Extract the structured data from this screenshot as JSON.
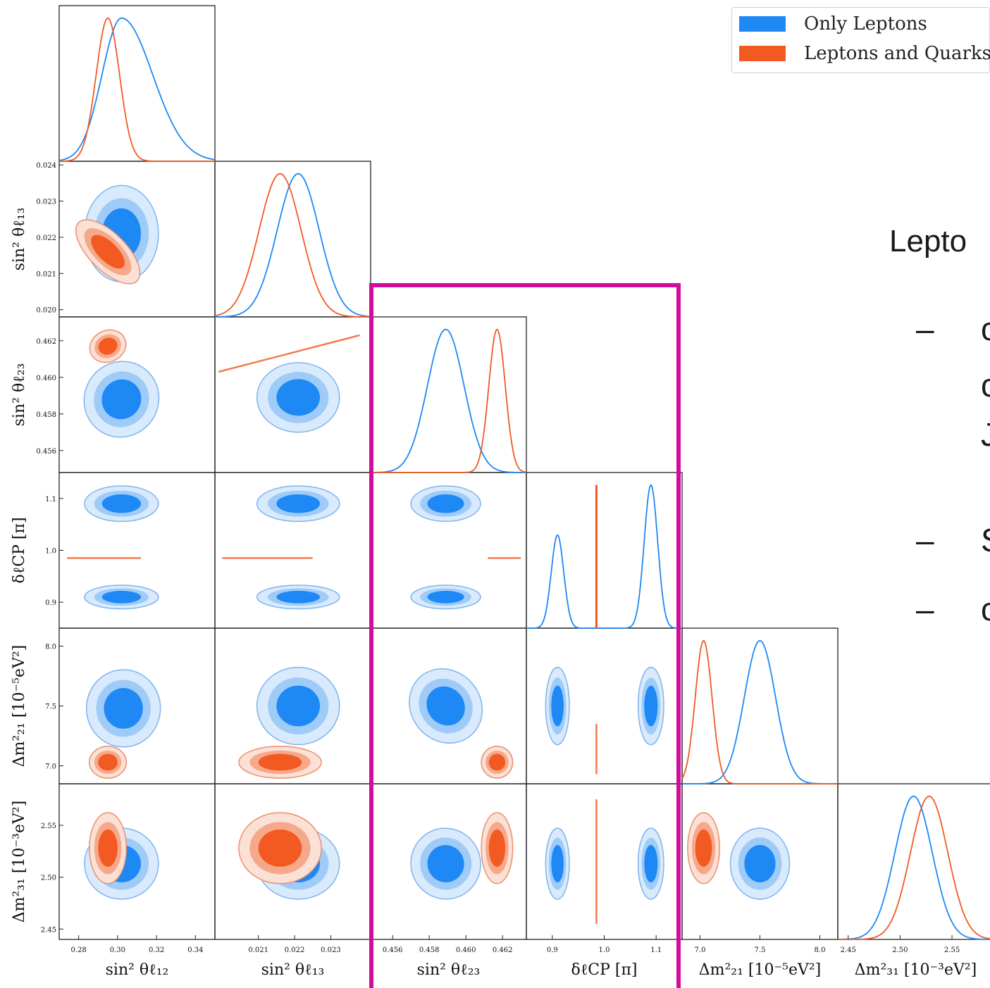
{
  "legend": {
    "items": [
      {
        "label": "Only Leptons",
        "color": "#1e88f5"
      },
      {
        "label": "Leptons and Quarks",
        "color": "#f25a22"
      }
    ]
  },
  "side_text": {
    "title": "Lepto",
    "bullets": [
      {
        "dash": "–",
        "lines": [
          "c",
          "c",
          "J"
        ]
      },
      {
        "dash": "–",
        "lines": [
          "S"
        ]
      },
      {
        "dash": "–",
        "lines": [
          "c"
        ]
      }
    ]
  },
  "highlight_color": "#d10d9c",
  "colors": {
    "blue": "#1e88f5",
    "blue_mid": "#9ecbf7",
    "blue_light": "#d8eafc",
    "orange": "#f25a22",
    "orange_mid": "#f5a98a",
    "orange_light": "#fbe0d5"
  },
  "chart_data": {
    "type": "corner",
    "parameters": [
      {
        "id": "s12",
        "label": "sin² θℓ₁₂",
        "ylabel": "",
        "range": [
          0.27,
          0.35
        ],
        "ticks": [
          "0.28",
          "0.30",
          "0.32",
          "0.34"
        ],
        "tick_values": [
          0.28,
          0.3,
          0.32,
          0.34
        ]
      },
      {
        "id": "s13",
        "label": "sin² θℓ₁₃",
        "ylabel": "sin² θℓ₁₃",
        "range": [
          0.0198,
          0.0241
        ],
        "ticks": [
          "0.021",
          "0.022",
          "0.023"
        ],
        "tick_values": [
          0.021,
          0.022,
          0.023
        ],
        "yticks": [
          "0.020",
          "0.021",
          "0.022",
          "0.023",
          "0.024"
        ],
        "ytick_values": [
          0.02,
          0.021,
          0.022,
          0.023,
          0.024
        ]
      },
      {
        "id": "s23",
        "label": "sin² θℓ₂₃",
        "ylabel": "sin² θℓ₂₃",
        "range": [
          0.4548,
          0.4633
        ],
        "ticks": [
          "0.456",
          "0.458",
          "0.460",
          "0.462"
        ],
        "tick_values": [
          0.456,
          0.458,
          0.46,
          0.462
        ]
      },
      {
        "id": "dcp",
        "label": "δℓCP [π]",
        "ylabel": "δℓCP [π]",
        "range": [
          0.85,
          1.15
        ],
        "ticks": [
          "0.9",
          "1.0",
          "1.1"
        ],
        "tick_values": [
          0.9,
          1.0,
          1.1
        ]
      },
      {
        "id": "m21",
        "label": "Δm²₂₁ [10⁻⁵eV²]",
        "ylabel": "Δm²₂₁ [10⁻⁵eV²]",
        "range": [
          6.85,
          8.15
        ],
        "ticks": [
          "7.0",
          "7.5",
          "8.0"
        ],
        "tick_values": [
          7.0,
          7.5,
          8.0
        ]
      },
      {
        "id": "m31",
        "label": "Δm²₃₁ [10⁻³eV²]",
        "ylabel": "Δm²₃₁ [10⁻³eV²]",
        "range": [
          2.44,
          2.59
        ],
        "ticks": [
          "2.45",
          "2.50",
          "2.55"
        ],
        "tick_values": [
          2.45,
          2.5,
          2.55
        ]
      }
    ],
    "series": [
      {
        "name": "Only Leptons",
        "color": "#1e88f5",
        "peaks": {
          "s12": 0.302,
          "s13": 0.0221,
          "s23": 0.4589,
          "dcp": [
            0.91,
            1.09
          ],
          "m21": 7.5,
          "m31": 2.513
        }
      },
      {
        "name": "Leptons and Quarks",
        "color": "#f25a22",
        "peaks": {
          "s12": 0.295,
          "s13": 0.0216,
          "s23": 0.4617,
          "dcp": 0.985,
          "m21": 7.03,
          "m31": 2.528
        }
      }
    ]
  }
}
